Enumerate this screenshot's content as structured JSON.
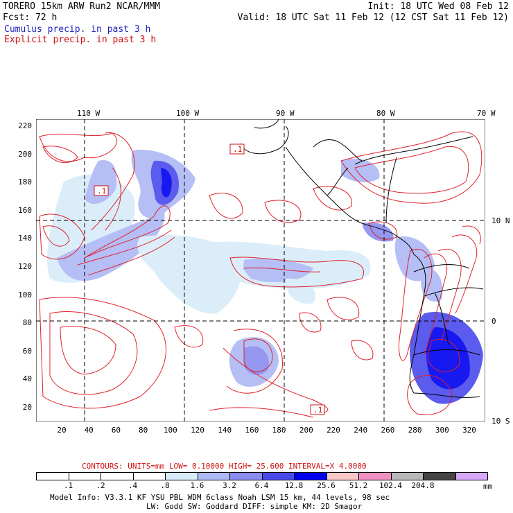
{
  "header": {
    "line1_left": "TORERO  15km ARW   Run2    NCAR/MMM",
    "line1_right": "Init: 18 UTC Wed 08 Feb 12",
    "line2_left": "Fcst:   72 h",
    "line2_right": "Valid: 18 UTC Sat 11 Feb 12 (12 CST Sat 11 Feb 12)",
    "cumulus_label": "Cumulus precip. in past 3 h",
    "explicit_label": "Explicit precip. in past 3 h"
  },
  "map": {
    "top_lon_labels": [
      "110 W",
      "100 W",
      "90 W",
      "80 W",
      "70 W"
    ],
    "right_lat_labels": [
      "10 N",
      "0",
      "10 S"
    ],
    "left_y_labels": [
      "220",
      "200",
      "180",
      "160",
      "140",
      "120",
      "100",
      "80",
      "60",
      "40",
      "20"
    ],
    "bottom_x_labels": [
      "20",
      "40",
      "60",
      "80",
      "100",
      "120",
      "140",
      "160",
      "180",
      "200",
      "220",
      "240",
      "260",
      "280",
      "300",
      "320"
    ],
    "box_labels": [
      ".1",
      ".1",
      ".1"
    ]
  },
  "colorbar": {
    "contours_label": "CONTOURS:  UNITS=mm  LOW= 0.10000       HIGH=  25.600      INTERVAL=X  4.0000",
    "levels": [
      ".1",
      ".2",
      ".4",
      ".8",
      "1.6",
      "3.2",
      "6.4",
      "12.8",
      "25.6",
      "51.2",
      "102.4",
      "204.8"
    ],
    "colors": [
      "#ffffff",
      "#ffffff",
      "#ffffff",
      "#ffffff",
      "#d8ecf8",
      "#aeb8f4",
      "#8a8cf0",
      "#4a4aec",
      "#0000f0",
      "#f8c8c8",
      "#f090c0",
      "#b8b8b8",
      "#444444",
      "#d8a8f8"
    ],
    "units": "mm"
  },
  "footer": {
    "line1": "Model Info: V3.3.1   KF     YSU PBL  WDM 6class  Noah LSM  15 km,    44 levels,    98 sec",
    "line2": "LW: Godd SW: Goddard DIFF: simple KM: 2D Smagor"
  }
}
